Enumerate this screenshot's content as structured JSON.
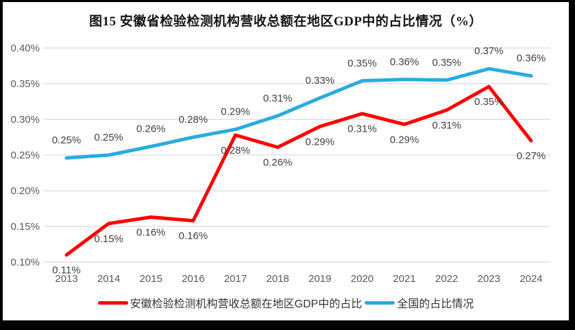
{
  "figure": {
    "frame_color": "#000000",
    "background_color": "#ffffff",
    "gridline_color": "#d9d9d9",
    "tick_label_color": "#595959",
    "data_label_color": "#404040"
  },
  "chart_data": {
    "type": "line",
    "title": "图15 安徽省检验检测机构营收总额在地区GDP中的占比情况（%）",
    "categories": [
      "2013",
      "2014",
      "2015",
      "2016",
      "2017",
      "2018",
      "2019",
      "2020",
      "2021",
      "2022",
      "2023",
      "2024"
    ],
    "series": [
      {
        "name": "安徽检验检测机构营收总额在地区GDP中的占比",
        "color": "#ff0000",
        "label_side": "below",
        "values": [
          0.11,
          0.15,
          0.16,
          0.16,
          0.28,
          0.26,
          0.29,
          0.31,
          0.29,
          0.31,
          0.35,
          0.27
        ],
        "data_labels": [
          "0.11%",
          "0.15%",
          "0.16%",
          "0.16%",
          "0.28%",
          "0.26%",
          "0.29%",
          "0.31%",
          "0.29%",
          "0.31%",
          "0.35%",
          "0.27%"
        ],
        "plot_values": [
          0.11,
          0.154,
          0.163,
          0.158,
          0.278,
          0.261,
          0.29,
          0.308,
          0.293,
          0.313,
          0.346,
          0.27
        ]
      },
      {
        "name": "全国的占比情况",
        "color": "#29abe2",
        "label_side": "above",
        "values": [
          0.25,
          0.25,
          0.26,
          0.28,
          0.29,
          0.31,
          0.33,
          0.35,
          0.36,
          0.35,
          0.37,
          0.36
        ],
        "data_labels": [
          "0.25%",
          "0.25%",
          "0.26%",
          "0.28%",
          "0.29%",
          "0.31%",
          "0.33%",
          "0.35%",
          "0.36%",
          "0.35%",
          "0.37%",
          "0.36%"
        ],
        "plot_values": [
          0.246,
          0.25,
          0.262,
          0.275,
          0.286,
          0.305,
          0.33,
          0.354,
          0.356,
          0.355,
          0.371,
          0.361
        ]
      }
    ],
    "ylim": [
      0.1,
      0.4
    ],
    "ytick_step": 0.05,
    "ytick_labels": [
      "0.40%",
      "0.35%",
      "0.30%",
      "0.25%",
      "0.20%",
      "0.15%",
      "0.10%"
    ],
    "grid": true,
    "legend_position": "bottom"
  }
}
